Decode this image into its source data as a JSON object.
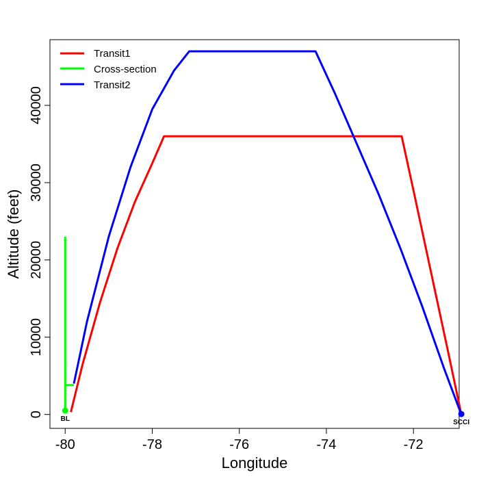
{
  "chart_data": {
    "type": "line",
    "xlabel": "Longitude",
    "ylabel": "Altitude (feet)",
    "xlim": [
      -80.35,
      -70.95
    ],
    "ylim": [
      -1800,
      48500
    ],
    "x_ticks": [
      -80,
      -78,
      -76,
      -74,
      -72
    ],
    "x_tick_labels": [
      "-80",
      "-78",
      "-76",
      "-74",
      "-72"
    ],
    "y_ticks": [
      0,
      10000,
      20000,
      30000,
      40000
    ],
    "y_tick_labels": [
      "0",
      "10000",
      "20000",
      "30000",
      "40000"
    ],
    "legend_position": "top-left",
    "series": [
      {
        "name": "Transit1",
        "color": "#ff0000",
        "x": [
          -79.87,
          -79.6,
          -79.2,
          -78.8,
          -78.4,
          -78.0,
          -77.73,
          -72.27,
          -72.0,
          -71.6,
          -71.2,
          -70.9
        ],
        "y": [
          300,
          6500,
          14500,
          21500,
          27500,
          32500,
          36000,
          36000,
          29000,
          18500,
          8000,
          0
        ]
      },
      {
        "name": "Cross-section",
        "color": "#00ff00",
        "segments": [
          {
            "x": [
              -80.0,
              -80.0
            ],
            "y": [
              23000,
              600
            ]
          },
          {
            "x": [
              -80.0,
              -79.8
            ],
            "y": [
              3800,
              3800
            ]
          }
        ]
      },
      {
        "name": "Transit2",
        "color": "#0000ff",
        "x": [
          -79.8,
          -79.5,
          -79.0,
          -78.5,
          -78.0,
          -77.5,
          -77.15,
          -74.25,
          -73.8,
          -73.3,
          -72.8,
          -72.3,
          -71.8,
          -71.3,
          -70.9
        ],
        "y": [
          4000,
          12000,
          23000,
          32000,
          39500,
          44500,
          47000,
          47000,
          41500,
          35000,
          28500,
          21500,
          14000,
          6000,
          0
        ]
      }
    ],
    "points": [
      {
        "label": "BL",
        "x": -80.0,
        "y": 500,
        "color": "#00ff00"
      },
      {
        "label": "SCCI",
        "x": -70.9,
        "y": 50,
        "color": "#0000ff",
        "label_color": "#660099"
      }
    ]
  }
}
